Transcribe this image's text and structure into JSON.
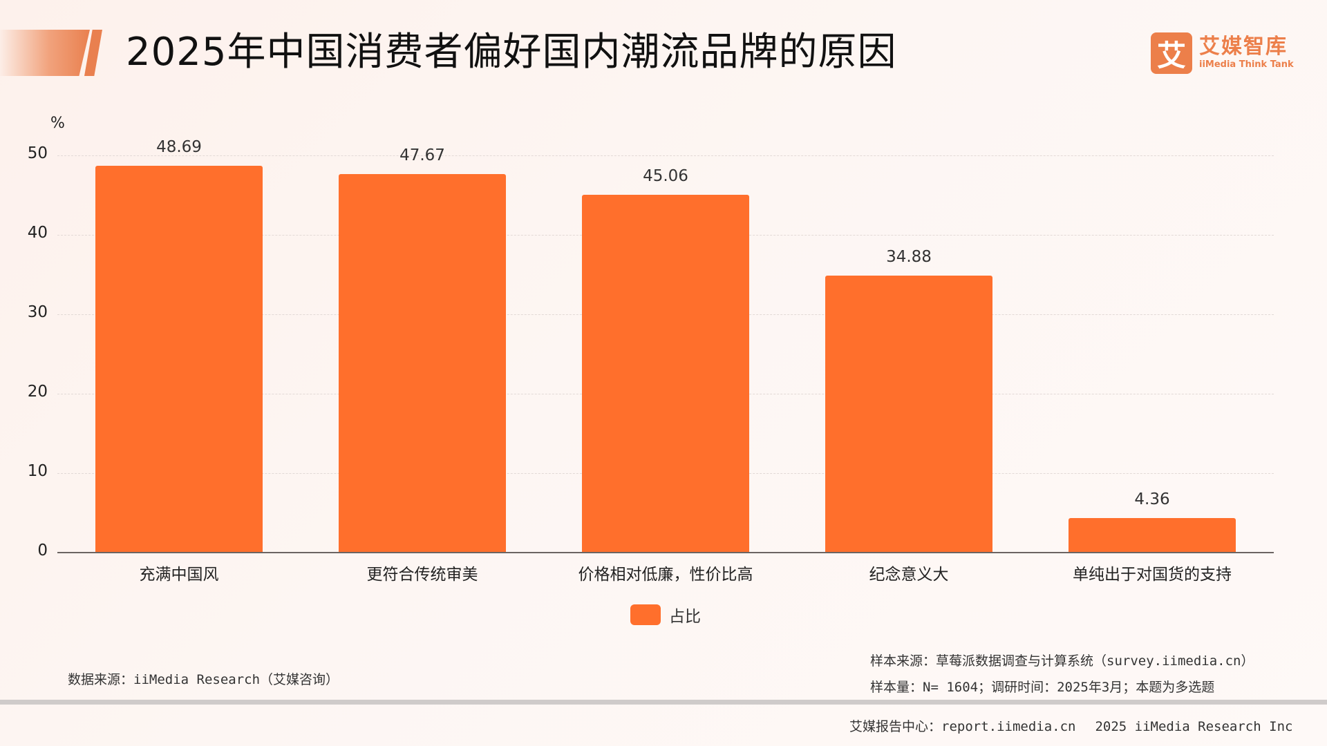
{
  "header": {
    "title": "2025年中国消费者偏好国内潮流品牌的原因",
    "logo": {
      "mark": "艾",
      "name_cn": "艾媒智库",
      "name_en": "iiMedia Think Tank",
      "icon": "imedia-logo-icon"
    }
  },
  "colors": {
    "bar": "#ff6f2c",
    "accent": "#ec7f4a",
    "background": "#fdf4f0",
    "gridline": "#e2d9d6",
    "axis": "#6b6462"
  },
  "chart_data": {
    "type": "bar",
    "title": "2025年中国消费者偏好国内潮流品牌的原因",
    "xlabel": "",
    "ylabel": "%",
    "ylim": [
      0,
      50
    ],
    "yticks": [
      0,
      10,
      20,
      30,
      40,
      50
    ],
    "grid": "horizontal dashed",
    "legend_position": "bottom-center",
    "categories": [
      "充满中国风",
      "更符合传统审美",
      "价格相对低廉，性价比高",
      "纪念意义大",
      "单纯出于对国货的支持"
    ],
    "series": [
      {
        "name": "占比",
        "values": [
          48.69,
          47.67,
          45.06,
          34.88,
          4.36
        ]
      }
    ],
    "value_labels": [
      "48.69",
      "47.67",
      "45.06",
      "34.88",
      "4.36"
    ]
  },
  "axis": {
    "y_unit": "%",
    "y_ticks": [
      "0",
      "10",
      "20",
      "30",
      "40",
      "50"
    ]
  },
  "legend": {
    "label": "占比"
  },
  "footer": {
    "data_source": "数据来源：iiMedia Research（艾媒咨询）",
    "sample_source": "样本来源：草莓派数据调查与计算系统（survey.iimedia.cn）",
    "sample_info": "样本量：N= 1604；调研时间：2025年3月；本题为多选题",
    "report_center": "艾媒报告中心：report.iimedia.cn",
    "copyright": "2025 iiMedia Research Inc"
  }
}
